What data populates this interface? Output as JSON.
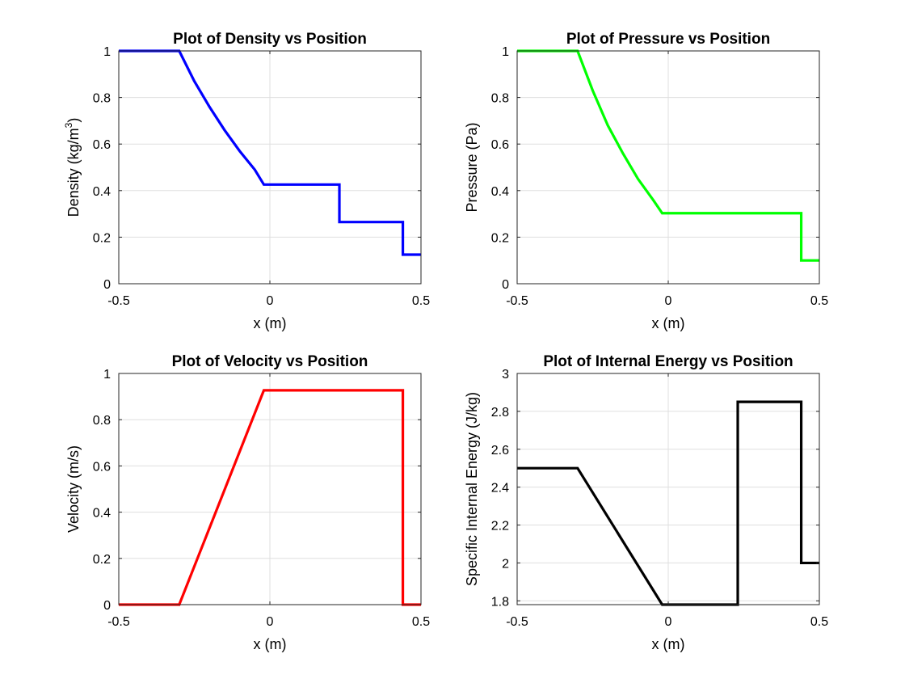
{
  "chart_data": [
    {
      "type": "line",
      "title": "Plot of Density vs Position",
      "xlabel": "x (m)",
      "ylabel": "Density (kg/m",
      "ylabel_sup": "3",
      "ylabel_end": ")",
      "xlim": [
        -0.5,
        0.5
      ],
      "ylim": [
        0,
        1
      ],
      "xticks": [
        -0.5,
        0,
        0.5
      ],
      "xtick_labels": [
        "-0.5",
        "0",
        "0.5"
      ],
      "yticks": [
        0,
        0.2,
        0.4,
        0.6,
        0.8,
        1
      ],
      "ytick_labels": [
        "0",
        "0.2",
        "0.4",
        "0.6",
        "0.8",
        "1"
      ],
      "grid": true,
      "color": "#0000ff",
      "x": [
        -0.5,
        -0.3,
        -0.25,
        -0.2,
        -0.15,
        -0.1,
        -0.05,
        -0.02,
        0.0,
        0.23,
        0.23,
        0.44,
        0.44,
        0.5
      ],
      "y": [
        1,
        1,
        0.87,
        0.76,
        0.66,
        0.57,
        0.49,
        0.426,
        0.426,
        0.426,
        0.265,
        0.265,
        0.125,
        0.125
      ]
    },
    {
      "type": "line",
      "title": "Plot of Pressure vs Position",
      "xlabel": "x (m)",
      "ylabel": "Pressure (Pa)",
      "xlim": [
        -0.5,
        0.5
      ],
      "ylim": [
        0,
        1
      ],
      "xticks": [
        -0.5,
        0,
        0.5
      ],
      "xtick_labels": [
        "-0.5",
        "0",
        "0.5"
      ],
      "yticks": [
        0,
        0.2,
        0.4,
        0.6,
        0.8,
        1
      ],
      "ytick_labels": [
        "0",
        "0.2",
        "0.4",
        "0.6",
        "0.8",
        "1"
      ],
      "grid": true,
      "color": "#00ff00",
      "x": [
        -0.5,
        -0.3,
        -0.25,
        -0.2,
        -0.15,
        -0.1,
        -0.05,
        -0.02,
        0.0,
        0.44,
        0.44,
        0.5
      ],
      "y": [
        1,
        1,
        0.83,
        0.68,
        0.56,
        0.45,
        0.36,
        0.303,
        0.303,
        0.303,
        0.1,
        0.1
      ]
    },
    {
      "type": "line",
      "title": "Plot of Velocity vs Position",
      "xlabel": "x (m)",
      "ylabel": "Velocity (m/s)",
      "xlim": [
        -0.5,
        0.5
      ],
      "ylim": [
        0,
        1
      ],
      "xticks": [
        -0.5,
        0,
        0.5
      ],
      "xtick_labels": [
        "-0.5",
        "0",
        "0.5"
      ],
      "yticks": [
        0,
        0.2,
        0.4,
        0.6,
        0.8,
        1
      ],
      "ytick_labels": [
        "0",
        "0.2",
        "0.4",
        "0.6",
        "0.8",
        "1"
      ],
      "grid": true,
      "color": "#ff0000",
      "x": [
        -0.5,
        -0.3,
        -0.02,
        0.44,
        0.44,
        0.5
      ],
      "y": [
        0,
        0,
        0.927,
        0.927,
        0,
        0
      ]
    },
    {
      "type": "line",
      "title": "Plot of Internal Energy vs Position",
      "xlabel": "x (m)",
      "ylabel": "Specific Internal Energy (J/kg)",
      "xlim": [
        -0.5,
        0.5
      ],
      "ylim": [
        1.78,
        3
      ],
      "xticks": [
        -0.5,
        0,
        0.5
      ],
      "xtick_labels": [
        "-0.5",
        "0",
        "0.5"
      ],
      "yticks": [
        1.8,
        2,
        2.2,
        2.4,
        2.6,
        2.8,
        3
      ],
      "ytick_labels": [
        "1.8",
        "2",
        "2.2",
        "2.4",
        "2.6",
        "2.8",
        "3"
      ],
      "grid": true,
      "color": "#000000",
      "x": [
        -0.5,
        -0.3,
        -0.02,
        0.23,
        0.23,
        0.44,
        0.44,
        0.5
      ],
      "y": [
        2.5,
        2.5,
        1.78,
        1.78,
        2.85,
        2.85,
        2.0,
        2.0
      ]
    }
  ]
}
